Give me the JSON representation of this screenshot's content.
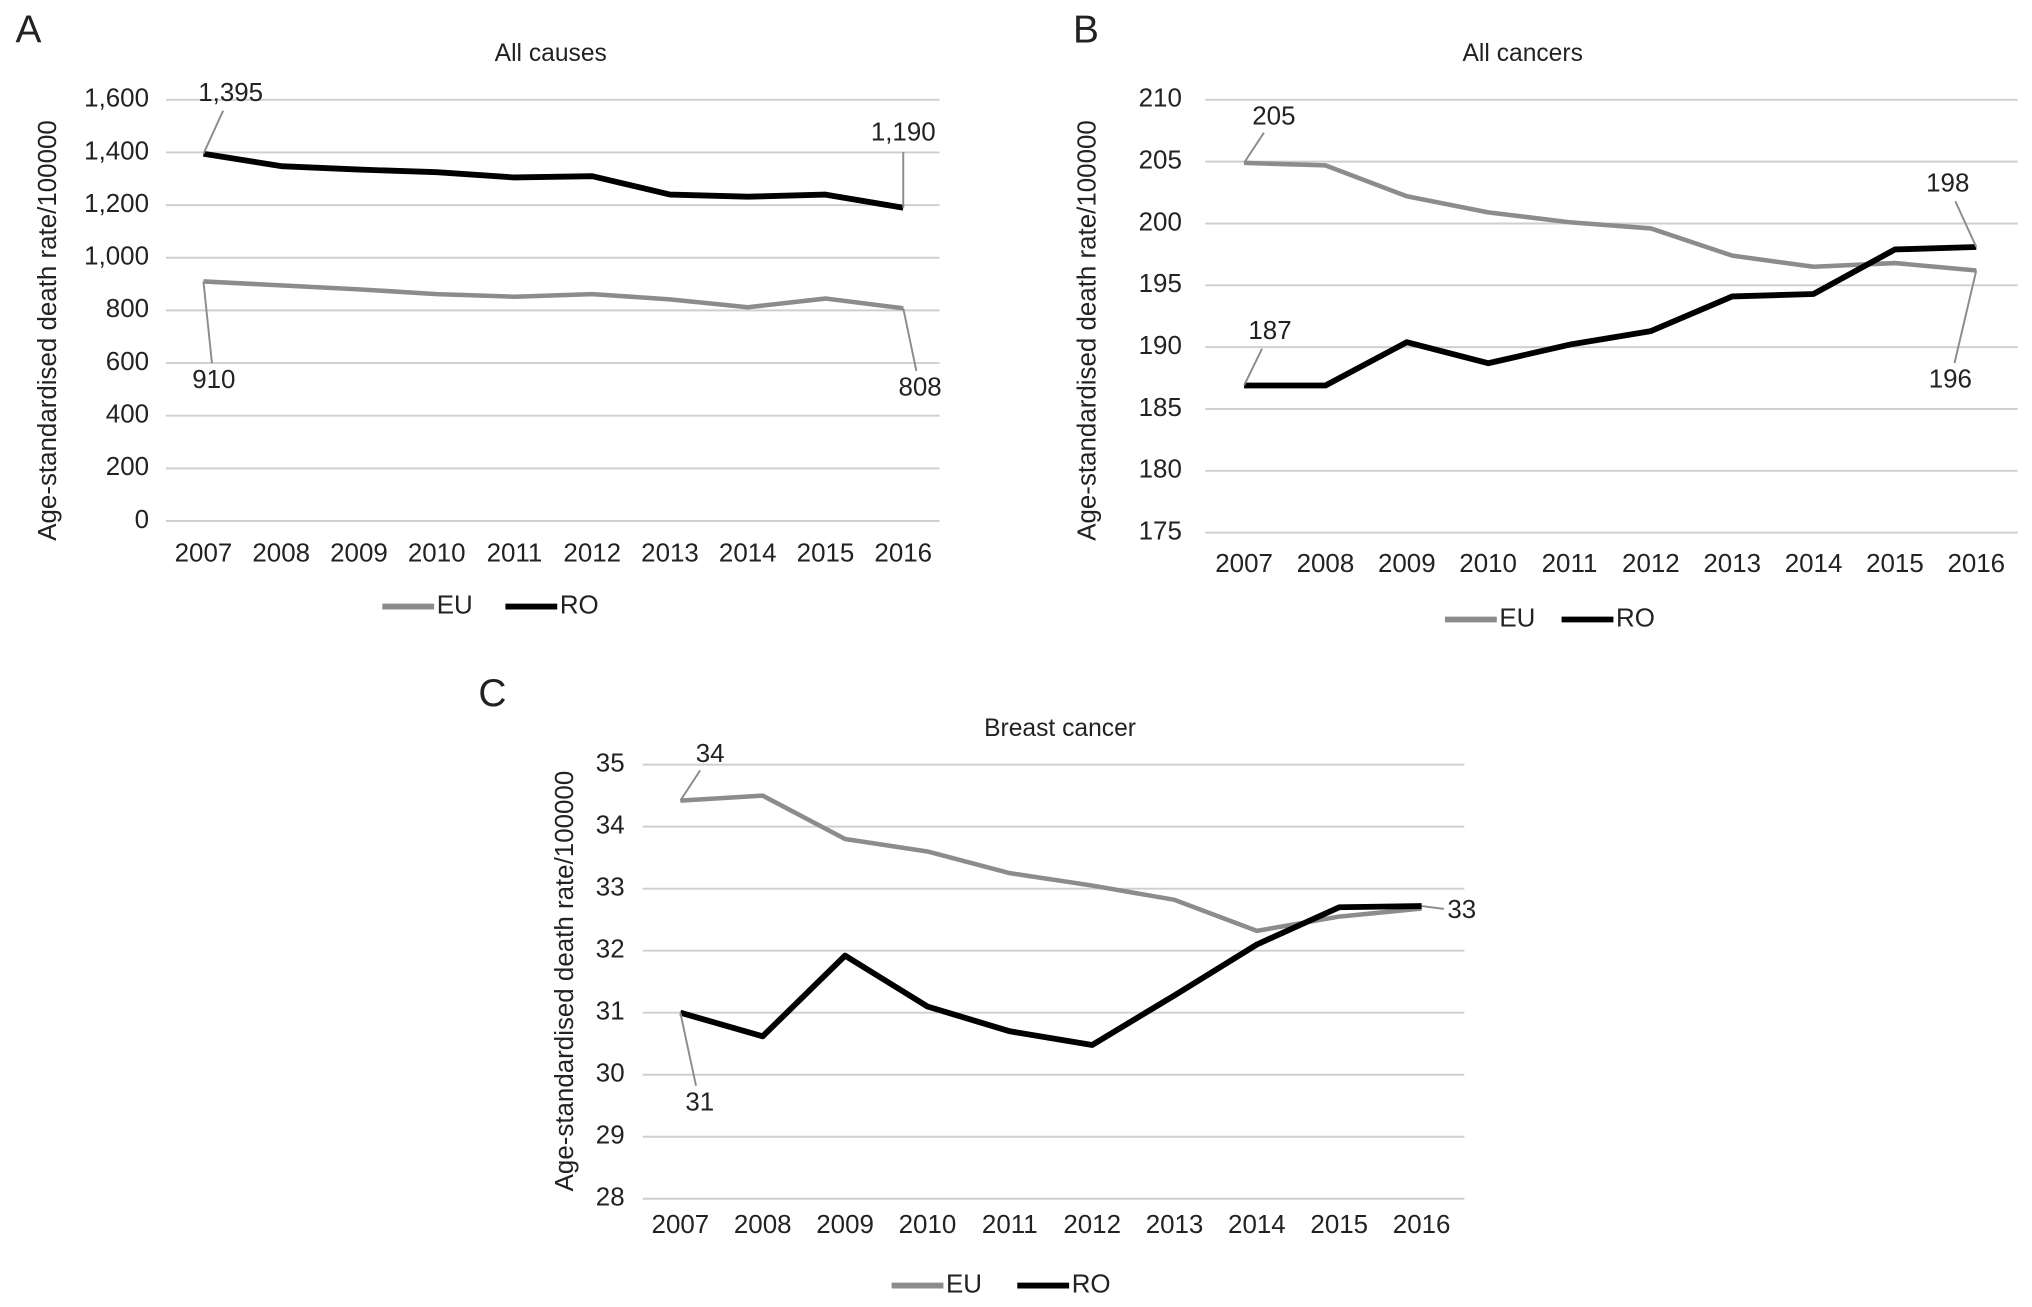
{
  "chart_data": [
    {
      "type": "line",
      "panel": "A",
      "title": "All causes",
      "y_label": "Age-standardised death rate/100000",
      "categories": [
        "2007",
        "2008",
        "2009",
        "2010",
        "2011",
        "2012",
        "2013",
        "2014",
        "2015",
        "2016"
      ],
      "ylim": [
        0,
        1600
      ],
      "yticks": [
        0,
        200,
        400,
        600,
        800,
        {
          "value": 1000,
          "label": "1,000"
        },
        {
          "value": 1200,
          "label": "1,200"
        },
        {
          "value": 1400,
          "label": "1,400"
        },
        {
          "value": 1600,
          "label": "1,600"
        }
      ],
      "grid": true,
      "series": [
        {
          "name": "EU",
          "color": "#8c8c8c",
          "values": [
            910,
            895,
            880,
            862,
            852,
            862,
            842,
            812,
            845,
            808
          ],
          "value_labels": [
            "910",
            null,
            null,
            null,
            null,
            null,
            null,
            null,
            null,
            "808"
          ]
        },
        {
          "name": "RO",
          "color": "#000000",
          "values": [
            1395,
            1348,
            1335,
            1325,
            1305,
            1310,
            1240,
            1232,
            1240,
            1190
          ],
          "value_labels": [
            "1,395",
            null,
            null,
            null,
            null,
            null,
            null,
            null,
            null,
            "1,190"
          ]
        }
      ]
    },
    {
      "type": "line",
      "panel": "B",
      "title": "All cancers",
      "y_label": "Age-standardised death rate/100000",
      "categories": [
        "2007",
        "2008",
        "2009",
        "2010",
        "2011",
        "2012",
        "2013",
        "2014",
        "2015",
        "2016"
      ],
      "ylim": [
        175,
        210
      ],
      "yticks": [
        175,
        180,
        185,
        190,
        195,
        200,
        205,
        210
      ],
      "grid": true,
      "series": [
        {
          "name": "EU",
          "color": "#8c8c8c",
          "values": [
            204.9,
            204.7,
            202.2,
            200.9,
            200.1,
            199.6,
            197.4,
            196.5,
            196.8,
            196.2
          ],
          "value_labels": [
            "205",
            null,
            null,
            null,
            null,
            null,
            null,
            null,
            null,
            "196"
          ]
        },
        {
          "name": "RO",
          "color": "#000000",
          "values": [
            186.9,
            186.9,
            190.4,
            188.7,
            190.2,
            191.3,
            194.1,
            194.3,
            197.9,
            198.1
          ],
          "value_labels": [
            "187",
            null,
            null,
            null,
            null,
            null,
            null,
            null,
            null,
            "198"
          ]
        }
      ]
    },
    {
      "type": "line",
      "panel": "C",
      "title": "Breast cancer",
      "y_label": "Age-standardised death rate/100000",
      "categories": [
        "2007",
        "2008",
        "2009",
        "2010",
        "2011",
        "2012",
        "2013",
        "2014",
        "2015",
        "2016"
      ],
      "ylim": [
        28,
        35
      ],
      "yticks": [
        28,
        29,
        30,
        31,
        32,
        33,
        34,
        35
      ],
      "grid": true,
      "series": [
        {
          "name": "EU",
          "color": "#8c8c8c",
          "values": [
            34.42,
            34.5,
            33.8,
            33.6,
            33.25,
            33.05,
            32.82,
            32.32,
            32.55,
            32.68
          ],
          "value_labels": [
            "34",
            null,
            null,
            null,
            null,
            null,
            null,
            null,
            null,
            null
          ]
        },
        {
          "name": "RO",
          "color": "#000000",
          "values": [
            31.0,
            30.62,
            31.92,
            31.1,
            30.7,
            30.48,
            31.28,
            32.1,
            32.7,
            32.72
          ],
          "value_labels": [
            "31",
            null,
            null,
            null,
            null,
            null,
            null,
            null,
            null,
            "33"
          ]
        }
      ]
    }
  ]
}
